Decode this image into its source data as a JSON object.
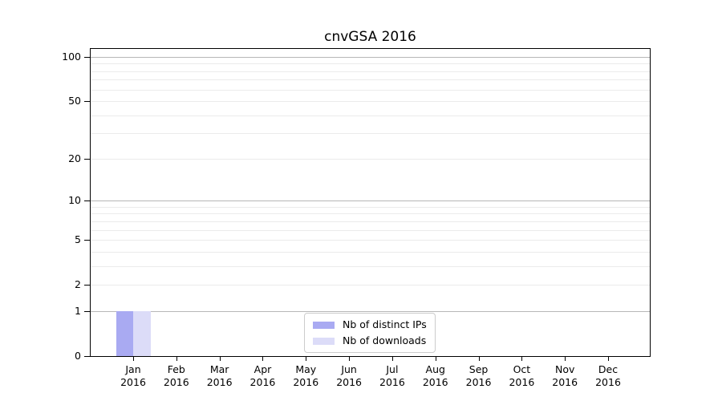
{
  "title": "cnvGSA 2016",
  "chart_data": {
    "type": "bar",
    "title": "cnvGSA 2016",
    "categories": [
      "Jan",
      "Feb",
      "Mar",
      "Apr",
      "May",
      "Jun",
      "Jul",
      "Aug",
      "Sep",
      "Oct",
      "Nov",
      "Dec"
    ],
    "category_year": "2016",
    "series": [
      {
        "name": "Nb of distinct IPs",
        "color": "#a9aaf2",
        "values": [
          1,
          0,
          0,
          0,
          0,
          0,
          0,
          0,
          0,
          0,
          0,
          0
        ]
      },
      {
        "name": "Nb of downloads",
        "color": "#dcdcf8",
        "values": [
          1,
          0,
          0,
          0,
          0,
          0,
          0,
          0,
          0,
          0,
          0,
          0
        ]
      }
    ],
    "xlabel": "",
    "ylabel": "",
    "y_axis": {
      "scale": "log1p",
      "tick_values": [
        0,
        1,
        2,
        5,
        10,
        20,
        50,
        100
      ],
      "major_gridlines": [
        1,
        10,
        100
      ],
      "minor_gridlines": [
        2,
        3,
        4,
        5,
        6,
        7,
        8,
        9,
        20,
        30,
        40,
        50,
        60,
        70,
        80,
        90
      ],
      "ylim": [
        0,
        113
      ]
    },
    "legend": {
      "position": "bottom-center",
      "entries": [
        "Nb of distinct IPs",
        "Nb of downloads"
      ]
    },
    "grid": "on"
  },
  "colors": {
    "spine": "#000000",
    "major_grid": "#b7b7b7",
    "minor_grid": "#ebebeb",
    "legend_border": "#cccccc",
    "text": "#000000"
  }
}
